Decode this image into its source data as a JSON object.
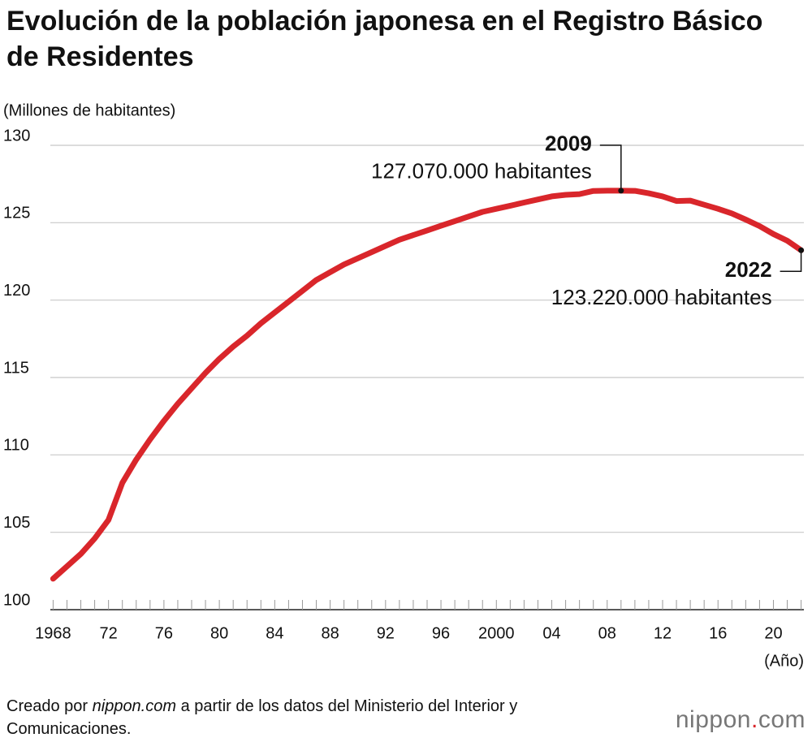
{
  "chart_data": {
    "type": "line",
    "title": "Evolución de la población japonesa en el Registro Básico de Residentes",
    "y_label": "(Millones de habitantes)",
    "x_label": "(Año)",
    "x": [
      1968,
      1969,
      1970,
      1971,
      1972,
      1973,
      1974,
      1975,
      1976,
      1977,
      1978,
      1979,
      1980,
      1981,
      1982,
      1983,
      1984,
      1985,
      1986,
      1987,
      1988,
      1989,
      1990,
      1991,
      1992,
      1993,
      1994,
      1995,
      1996,
      1997,
      1998,
      1999,
      2000,
      2001,
      2002,
      2003,
      2004,
      2005,
      2006,
      2007,
      2008,
      2009,
      2010,
      2011,
      2012,
      2013,
      2014,
      2015,
      2016,
      2017,
      2018,
      2019,
      2020,
      2021,
      2022
    ],
    "series": [
      {
        "color": "#d9262b",
        "values": [
          102.0,
          102.8,
          103.6,
          104.6,
          105.8,
          108.2,
          109.7,
          111.0,
          112.2,
          113.3,
          114.3,
          115.3,
          116.2,
          117.0,
          117.7,
          118.5,
          119.2,
          119.9,
          120.6,
          121.3,
          121.8,
          122.3,
          122.7,
          123.1,
          123.5,
          123.9,
          124.2,
          124.5,
          124.8,
          125.1,
          125.4,
          125.7,
          125.9,
          126.1,
          126.3,
          126.5,
          126.7,
          126.8,
          126.85,
          127.05,
          127.07,
          127.07,
          127.06,
          126.9,
          126.7,
          126.4,
          126.43,
          126.16,
          125.9,
          125.6,
          125.2,
          124.78,
          124.27,
          123.84,
          123.22
        ]
      }
    ],
    "xlim": [
      1967.8,
      2022.2
    ],
    "xticks": [
      1968,
      {
        "value": 1972,
        "label": "72"
      },
      {
        "value": 1976,
        "label": "76"
      },
      {
        "value": 1980,
        "label": "80"
      },
      {
        "value": 1984,
        "label": "84"
      },
      {
        "value": 1988,
        "label": "88"
      },
      {
        "value": 1992,
        "label": "92"
      },
      {
        "value": 1996,
        "label": "96"
      },
      2000,
      {
        "value": 2004,
        "label": "04"
      },
      {
        "value": 2008,
        "label": "08"
      },
      {
        "value": 2012,
        "label": "12"
      },
      {
        "value": 2016,
        "label": "16"
      },
      {
        "value": 2020,
        "label": "20"
      }
    ],
    "ylim": [
      100,
      130
    ],
    "yticks": [
      100,
      105,
      110,
      115,
      120,
      125,
      130
    ],
    "grid": true,
    "annotations": [
      {
        "x": 2009,
        "y": 127.07,
        "label": "2009",
        "text": "127.070.000 habitantes",
        "side": "above"
      },
      {
        "x": 2022,
        "y": 123.22,
        "label": "2022",
        "text": "123.220.000 habitantes",
        "side": "below"
      }
    ]
  },
  "source": [
    "Creado por ",
    "nippon.com",
    " a partir de los datos del Ministerio del Interior y Comunicaciones."
  ],
  "logo": [
    "nippon",
    ".",
    "com"
  ]
}
